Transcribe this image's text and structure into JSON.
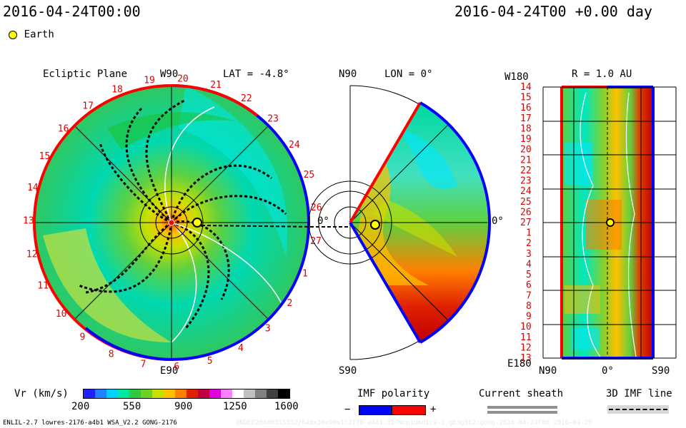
{
  "header": {
    "time_left": "2016-04-24T00:00",
    "time_right": "2016-04-24T00 +0.00 day",
    "legend_earth": "Earth"
  },
  "ecliptic": {
    "title": "Ecliptic Plane",
    "top_label": "W90",
    "bottom_label": "E90",
    "lat_label": "LAT = -4.8°",
    "zero_label": "0°",
    "sector_numbers": [
      "20",
      "21",
      "22",
      "23",
      "24",
      "25",
      "26",
      "27",
      "1",
      "2",
      "3",
      "4",
      "5",
      "6",
      "7",
      "8",
      "9",
      "10",
      "11",
      "12",
      "13",
      "14",
      "15",
      "16",
      "17",
      "18",
      "19"
    ]
  },
  "meridional": {
    "top_label": "N90",
    "bottom_label": "S90",
    "lon_label": "LON = 0°",
    "zero_label": "0°"
  },
  "radial": {
    "title": "R = 1.0 AU",
    "top_left": "W180",
    "bottom_left": "E180",
    "x_labels": [
      "N90",
      "0°",
      "S90"
    ],
    "row_labels": [
      "14",
      "15",
      "16",
      "17",
      "18",
      "19",
      "20",
      "21",
      "22",
      "23",
      "24",
      "25",
      "26",
      "27",
      "1",
      "2",
      "3",
      "4",
      "5",
      "6",
      "7",
      "8",
      "9",
      "10",
      "11",
      "12",
      "13"
    ]
  },
  "colorbar": {
    "label": "Vr (km/s)",
    "ticks": [
      "200",
      "550",
      "900",
      "1250",
      "1600"
    ],
    "colors": [
      "#2020ff",
      "#2080ff",
      "#00d0ff",
      "#00e8a0",
      "#30c840",
      "#70d020",
      "#c8e000",
      "#ffc000",
      "#ff8000",
      "#e02000",
      "#c00040",
      "#e000e0",
      "#ff80ff",
      "#ffffff",
      "#c0c0c0",
      "#808080",
      "#404040",
      "#000000"
    ]
  },
  "imf": {
    "label": "IMF polarity",
    "minus": "−",
    "plus": "+",
    "negative_color": "#0000ff",
    "positive_color": "#ff0000"
  },
  "sheath": {
    "label": "Current sheath"
  },
  "imf3d": {
    "label": "3D IMF line"
  },
  "footer": {
    "model": "ENLIL-2.7 lowres-2176-a4b1 WSA_V2.2 GONG-2176",
    "run": "UNDEF20400315332/640x30x90x1:2176-a4b1.32-mcp1umn1cs-1.gb3g5b2:gong-2016-04-24T00  2016-04-29"
  }
}
